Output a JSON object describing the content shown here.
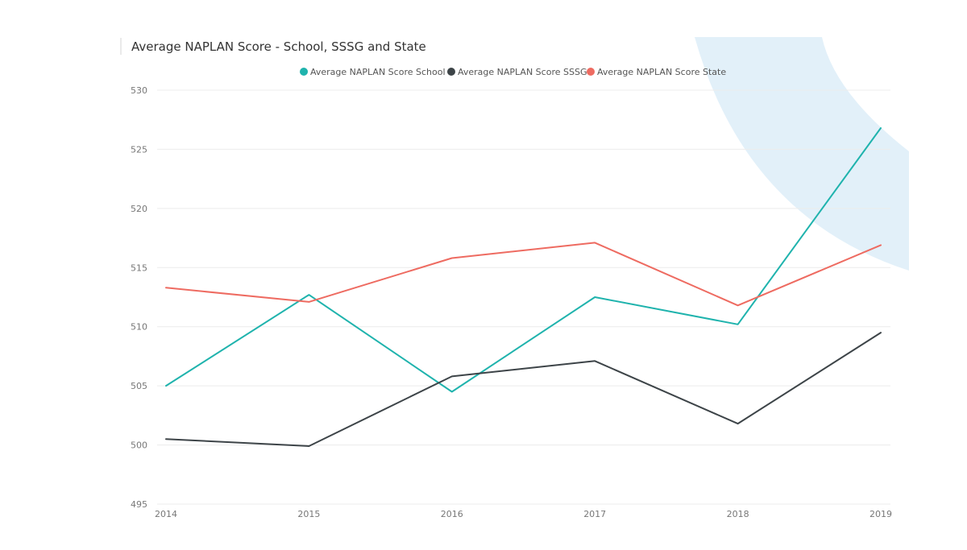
{
  "chart_data": {
    "type": "line",
    "title": "Average NAPLAN Score - School, SSSG and State",
    "xlabel": "",
    "ylabel": "",
    "x": [
      "2014",
      "2015",
      "2016",
      "2017",
      "2018",
      "2019"
    ],
    "ylim": [
      495,
      530
    ],
    "yticks": [
      530,
      525,
      520,
      515,
      510,
      505,
      500,
      495
    ],
    "grid": true,
    "legend_position": "top-center",
    "series": [
      {
        "name": "Average NAPLAN Score School",
        "color": "#1fb3ad",
        "values": [
          505.0,
          512.7,
          504.5,
          512.5,
          510.2,
          526.8
        ]
      },
      {
        "name": "Average NAPLAN Score SSSG",
        "color": "#3d4448",
        "values": [
          500.5,
          499.9,
          505.8,
          507.1,
          501.8,
          509.5
        ]
      },
      {
        "name": "Average NAPLAN Score State",
        "color": "#ee6b61",
        "values": [
          513.3,
          512.1,
          515.8,
          517.1,
          511.8,
          516.9
        ]
      }
    ]
  }
}
